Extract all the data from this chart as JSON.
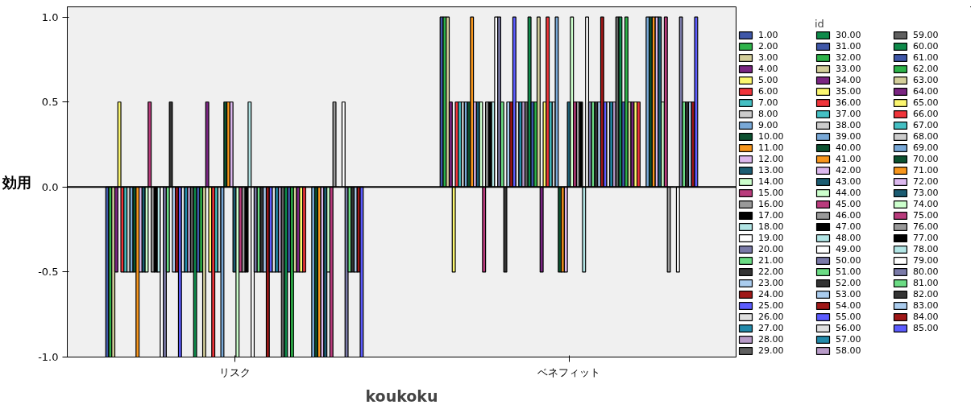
{
  "chart_data": {
    "type": "bar",
    "xlabel": "koukoku",
    "ylabel": "効用",
    "legend_title": "id",
    "categories": [
      "リスク",
      "ベネフィット"
    ],
    "ylim": [
      -1,
      1.06
    ],
    "yticks": [
      {
        "value": -1,
        "label": "-1.0"
      },
      {
        "value": -0.5,
        "label": "-0.5"
      },
      {
        "value": 0,
        "label": "0.0"
      },
      {
        "value": 0.5,
        "label": "0.5"
      },
      {
        "value": 1,
        "label": "1.0"
      }
    ],
    "grid": false,
    "legend": "right",
    "ref_lines": [
      {
        "axis": "y",
        "value": 0,
        "label": null,
        "color": "#000000"
      }
    ],
    "series": [
      {
        "name": "1.00",
        "color": "#3f57a8",
        "values": [
          -1,
          1
        ]
      },
      {
        "name": "2.00",
        "color": "#2eb34a",
        "values": [
          -1,
          1
        ]
      },
      {
        "name": "3.00",
        "color": "#d4cf9b",
        "values": [
          -1,
          1
        ]
      },
      {
        "name": "4.00",
        "color": "#7a2582",
        "values": [
          -0.5,
          0.5
        ]
      },
      {
        "name": "5.00",
        "color": "#fbf66f",
        "values": [
          0.5,
          -0.5
        ]
      },
      {
        "name": "6.00",
        "color": "#f0343a",
        "values": [
          -0.5,
          0.5
        ]
      },
      {
        "name": "7.00",
        "color": "#44bfc3",
        "values": [
          -0.5,
          0.5
        ]
      },
      {
        "name": "8.00",
        "color": "#cccccc",
        "values": [
          -0.5,
          0.5
        ]
      },
      {
        "name": "9.00",
        "color": "#78a8d7",
        "values": [
          -0.5,
          0.5
        ]
      },
      {
        "name": "10.00",
        "color": "#0c5130",
        "values": [
          -0.5,
          0.5
        ]
      },
      {
        "name": "11.00",
        "color": "#f7961d",
        "values": [
          -1,
          1
        ]
      },
      {
        "name": "12.00",
        "color": "#dcb8ee",
        "values": [
          -0.5,
          0.5
        ]
      },
      {
        "name": "13.00",
        "color": "#1b5c72",
        "values": [
          -0.5,
          0.5
        ]
      },
      {
        "name": "14.00",
        "color": "#ccffcc",
        "values": [
          -0.5,
          0.5
        ]
      },
      {
        "name": "15.00",
        "color": "#b93b7c",
        "values": [
          0.5,
          -0.5
        ]
      },
      {
        "name": "16.00",
        "color": "#999999",
        "values": [
          -0.5,
          0.5
        ]
      },
      {
        "name": "17.00",
        "color": "#000000",
        "values": [
          -0.5,
          0.5
        ]
      },
      {
        "name": "18.00",
        "color": "#b2e5e5",
        "values": [
          -0.5,
          0.5
        ]
      },
      {
        "name": "19.00",
        "color": "#ffffff",
        "values": [
          -1,
          1
        ]
      },
      {
        "name": "20.00",
        "color": "#7a7aa8",
        "values": [
          -1,
          1
        ]
      },
      {
        "name": "21.00",
        "color": "#6bdc84",
        "values": [
          -0.5,
          0.5
        ]
      },
      {
        "name": "22.00",
        "color": "#333333",
        "values": [
          0.5,
          -0.5
        ]
      },
      {
        "name": "23.00",
        "color": "#aaccee",
        "values": [
          -0.5,
          0.5
        ]
      },
      {
        "name": "24.00",
        "color": "#a01818",
        "values": [
          -0.5,
          0.5
        ]
      },
      {
        "name": "25.00",
        "color": "#5c5cff",
        "values": [
          -1,
          1
        ]
      },
      {
        "name": "26.00",
        "color": "#e0e0e0",
        "values": [
          -0.5,
          0.5
        ]
      },
      {
        "name": "27.00",
        "color": "#238aaa",
        "values": [
          -0.5,
          0.5
        ]
      },
      {
        "name": "28.00",
        "color": "#b89bc8",
        "values": [
          -0.5,
          0.5
        ]
      },
      {
        "name": "29.00",
        "color": "#5f5f5f",
        "values": [
          -0.5,
          0.5
        ]
      },
      {
        "name": "30.00",
        "color": "#0e8a4a",
        "values": [
          -1,
          1
        ]
      },
      {
        "name": "31.00",
        "color": "#3f57a8",
        "values": [
          -0.5,
          0.5
        ]
      },
      {
        "name": "32.00",
        "color": "#2eb34a",
        "values": [
          -0.5,
          0.5
        ]
      },
      {
        "name": "33.00",
        "color": "#d4cf9b",
        "values": [
          -1,
          1
        ]
      },
      {
        "name": "34.00",
        "color": "#7a2582",
        "values": [
          0.5,
          -0.5
        ]
      },
      {
        "name": "35.00",
        "color": "#fbf66f",
        "values": [
          -0.5,
          0.5
        ]
      },
      {
        "name": "36.00",
        "color": "#f0343a",
        "values": [
          -1,
          1
        ]
      },
      {
        "name": "37.00",
        "color": "#44bfc3",
        "values": [
          -0.5,
          0.5
        ]
      },
      {
        "name": "38.00",
        "color": "#cccccc",
        "values": [
          -0.5,
          0.5
        ]
      },
      {
        "name": "39.00",
        "color": "#78a8d7",
        "values": [
          -1,
          1
        ]
      },
      {
        "name": "40.00",
        "color": "#0c5130",
        "values": [
          0.5,
          -0.5
        ]
      },
      {
        "name": "41.00",
        "color": "#f7961d",
        "values": [
          0.5,
          -0.5
        ]
      },
      {
        "name": "42.00",
        "color": "#dcb8ee",
        "values": [
          0.5,
          -0.5
        ]
      },
      {
        "name": "43.00",
        "color": "#1b5c72",
        "values": [
          -0.5,
          0.5
        ]
      },
      {
        "name": "44.00",
        "color": "#ccffcc",
        "values": [
          -1,
          1
        ]
      },
      {
        "name": "45.00",
        "color": "#b93b7c",
        "values": [
          -0.5,
          0.5
        ]
      },
      {
        "name": "46.00",
        "color": "#999999",
        "values": [
          -0.5,
          0.5
        ]
      },
      {
        "name": "47.00",
        "color": "#000000",
        "values": [
          -0.5,
          0.5
        ]
      },
      {
        "name": "48.00",
        "color": "#b2e5e5",
        "values": [
          0.5,
          -0.5
        ]
      },
      {
        "name": "49.00",
        "color": "#ffffff",
        "values": [
          -1,
          1
        ]
      },
      {
        "name": "50.00",
        "color": "#7a7aa8",
        "values": [
          -0.5,
          0.5
        ]
      },
      {
        "name": "51.00",
        "color": "#6bdc84",
        "values": [
          -0.5,
          0.5
        ]
      },
      {
        "name": "52.00",
        "color": "#333333",
        "values": [
          -0.5,
          0.5
        ]
      },
      {
        "name": "53.00",
        "color": "#aaccee",
        "values": [
          -0.5,
          0.5
        ]
      },
      {
        "name": "54.00",
        "color": "#a01818",
        "values": [
          -1,
          1
        ]
      },
      {
        "name": "55.00",
        "color": "#5c5cff",
        "values": [
          -0.5,
          0.5
        ]
      },
      {
        "name": "56.00",
        "color": "#e0e0e0",
        "values": [
          -0.5,
          0.5
        ]
      },
      {
        "name": "57.00",
        "color": "#238aaa",
        "values": [
          -0.5,
          0.5
        ]
      },
      {
        "name": "58.00",
        "color": "#b89bc8",
        "values": [
          -0.5,
          0.5
        ]
      },
      {
        "name": "59.00",
        "color": "#5f5f5f",
        "values": [
          -1,
          1
        ]
      },
      {
        "name": "60.00",
        "color": "#0e8a4a",
        "values": [
          -1,
          1
        ]
      },
      {
        "name": "61.00",
        "color": "#3f57a8",
        "values": [
          -0.5,
          0.5
        ]
      },
      {
        "name": "62.00",
        "color": "#2eb34a",
        "values": [
          -1,
          1
        ]
      },
      {
        "name": "63.00",
        "color": "#d4cf9b",
        "values": [
          -0.5,
          0.5
        ]
      },
      {
        "name": "64.00",
        "color": "#7a2582",
        "values": [
          -0.5,
          0.5
        ]
      },
      {
        "name": "65.00",
        "color": "#fbf66f",
        "values": [
          -0.5,
          0.5
        ]
      },
      {
        "name": "66.00",
        "color": "#f0343a",
        "values": [
          -0.5,
          0.5
        ]
      },
      {
        "name": "67.00",
        "color": "#44bfc3",
        "values": [
          0,
          0
        ]
      },
      {
        "name": "68.00",
        "color": "#cccccc",
        "values": [
          0,
          0
        ]
      },
      {
        "name": "69.00",
        "color": "#78a8d7",
        "values": [
          -1,
          1
        ]
      },
      {
        "name": "70.00",
        "color": "#0c5130",
        "values": [
          -1,
          1
        ]
      },
      {
        "name": "71.00",
        "color": "#f7961d",
        "values": [
          -1,
          1
        ]
      },
      {
        "name": "72.00",
        "color": "#dcb8ee",
        "values": [
          -1,
          1
        ]
      },
      {
        "name": "73.00",
        "color": "#1b5c72",
        "values": [
          -1,
          1
        ]
      },
      {
        "name": "74.00",
        "color": "#ccffcc",
        "values": [
          -0.5,
          0.5
        ]
      },
      {
        "name": "75.00",
        "color": "#b93b7c",
        "values": [
          -1,
          1
        ]
      },
      {
        "name": "76.00",
        "color": "#999999",
        "values": [
          0.5,
          -0.5
        ]
      },
      {
        "name": "77.00",
        "color": "#000000",
        "values": [
          0,
          0
        ]
      },
      {
        "name": "78.00",
        "color": "#b2e5e5",
        "values": [
          0,
          0
        ]
      },
      {
        "name": "79.00",
        "color": "#ffffff",
        "values": [
          0.5,
          -0.5
        ]
      },
      {
        "name": "80.00",
        "color": "#7a7aa8",
        "values": [
          -1,
          1
        ]
      },
      {
        "name": "81.00",
        "color": "#6bdc84",
        "values": [
          -0.5,
          0.5
        ]
      },
      {
        "name": "82.00",
        "color": "#333333",
        "values": [
          -0.5,
          0.5
        ]
      },
      {
        "name": "83.00",
        "color": "#aaccee",
        "values": [
          -0.5,
          0.5
        ]
      },
      {
        "name": "84.00",
        "color": "#a01818",
        "values": [
          -0.5,
          0.5
        ]
      },
      {
        "name": "85.00",
        "color": "#5c5cff",
        "values": [
          -1,
          1
        ]
      }
    ]
  }
}
